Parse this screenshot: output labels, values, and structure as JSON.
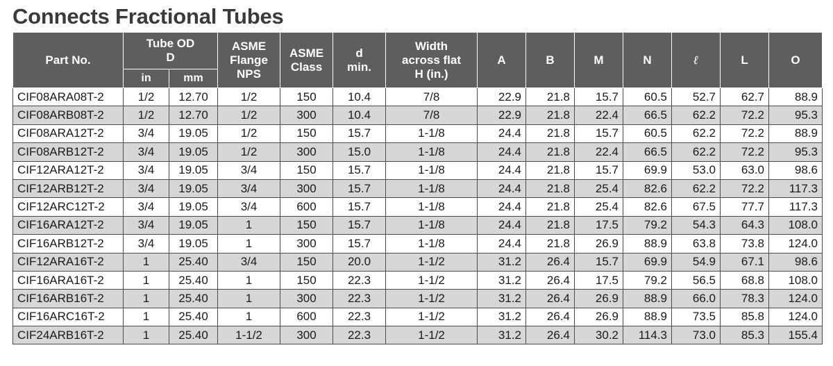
{
  "title": "Connects Fractional Tubes",
  "headers": {
    "part_no": "Part No.",
    "tube_od": "Tube OD",
    "tube_od_sub": "D",
    "in": "in",
    "mm": "mm",
    "asme_flange_1": "ASME",
    "asme_flange_2": "Flange",
    "asme_flange_3": "NPS",
    "asme_class_1": "ASME",
    "asme_class_2": "Class",
    "d_min_1": "d",
    "d_min_2": "min.",
    "width_1": "Width",
    "width_2": "across flat",
    "width_3": "H (in.)",
    "A": "A",
    "B": "B",
    "M": "M",
    "N": "N",
    "l": "ℓ",
    "L": "L",
    "O": "O"
  },
  "rows": [
    [
      "CIF08ARA08T-2",
      "1/2",
      "12.70",
      "1/2",
      "150",
      "10.4",
      "7/8",
      "22.9",
      "21.8",
      "15.7",
      "60.5",
      "52.7",
      "62.7",
      "88.9"
    ],
    [
      "CIF08ARB08T-2",
      "1/2",
      "12.70",
      "1/2",
      "300",
      "10.4",
      "7/8",
      "22.9",
      "21.8",
      "22.4",
      "66.5",
      "62.2",
      "72.2",
      "95.3"
    ],
    [
      "CIF08ARA12T-2",
      "3/4",
      "19.05",
      "1/2",
      "150",
      "15.7",
      "1-1/8",
      "24.4",
      "21.8",
      "15.7",
      "60.5",
      "62.2",
      "72.2",
      "88.9"
    ],
    [
      "CIF08ARB12T-2",
      "3/4",
      "19.05",
      "1/2",
      "300",
      "15.0",
      "1-1/8",
      "24.4",
      "21.8",
      "22.4",
      "66.5",
      "62.2",
      "72.2",
      "95.3"
    ],
    [
      "CIF12ARA12T-2",
      "3/4",
      "19.05",
      "3/4",
      "150",
      "15.7",
      "1-1/8",
      "24.4",
      "21.8",
      "15.7",
      "69.9",
      "53.0",
      "63.0",
      "98.6"
    ],
    [
      "CIF12ARB12T-2",
      "3/4",
      "19.05",
      "3/4",
      "300",
      "15.7",
      "1-1/8",
      "24.4",
      "21.8",
      "25.4",
      "82.6",
      "62.2",
      "72.2",
      "117.3"
    ],
    [
      "CIF12ARC12T-2",
      "3/4",
      "19.05",
      "3/4",
      "600",
      "15.7",
      "1-1/8",
      "24.4",
      "21.8",
      "25.4",
      "82.6",
      "67.5",
      "77.7",
      "117.3"
    ],
    [
      "CIF16ARA12T-2",
      "3/4",
      "19.05",
      "1",
      "150",
      "15.7",
      "1-1/8",
      "24.4",
      "21.8",
      "17.5",
      "79.2",
      "54.3",
      "64.3",
      "108.0"
    ],
    [
      "CIF16ARB12T-2",
      "3/4",
      "19.05",
      "1",
      "300",
      "15.7",
      "1-1/8",
      "24.4",
      "21.8",
      "26.9",
      "88.9",
      "63.8",
      "73.8",
      "124.0"
    ],
    [
      "CIF12ARA16T-2",
      "1",
      "25.40",
      "3/4",
      "150",
      "20.0",
      "1-1/2",
      "31.2",
      "26.4",
      "15.7",
      "69.9",
      "54.9",
      "67.1",
      "98.6"
    ],
    [
      "CIF16ARA16T-2",
      "1",
      "25.40",
      "1",
      "150",
      "22.3",
      "1-1/2",
      "31.2",
      "26.4",
      "17.5",
      "79.2",
      "56.5",
      "68.8",
      "108.0"
    ],
    [
      "CIF16ARB16T-2",
      "1",
      "25.40",
      "1",
      "300",
      "22.3",
      "1-1/2",
      "31.2",
      "26.4",
      "26.9",
      "88.9",
      "66.0",
      "78.3",
      "124.0"
    ],
    [
      "CIF16ARC16T-2",
      "1",
      "25.40",
      "1",
      "600",
      "22.3",
      "1-1/2",
      "31.2",
      "26.4",
      "26.9",
      "88.9",
      "73.5",
      "85.8",
      "124.0"
    ],
    [
      "CIF24ARB16T-2",
      "1",
      "25.40",
      "1-1/2",
      "300",
      "22.3",
      "1-1/2",
      "31.2",
      "26.4",
      "30.2",
      "114.3",
      "73.0",
      "85.3",
      "155.4"
    ]
  ],
  "colors": {
    "header_bg": "#5e5e5e",
    "header_text": "#ffffff",
    "alt_row_bg": "#d6d6d6",
    "title_text": "#3a3a3a"
  }
}
